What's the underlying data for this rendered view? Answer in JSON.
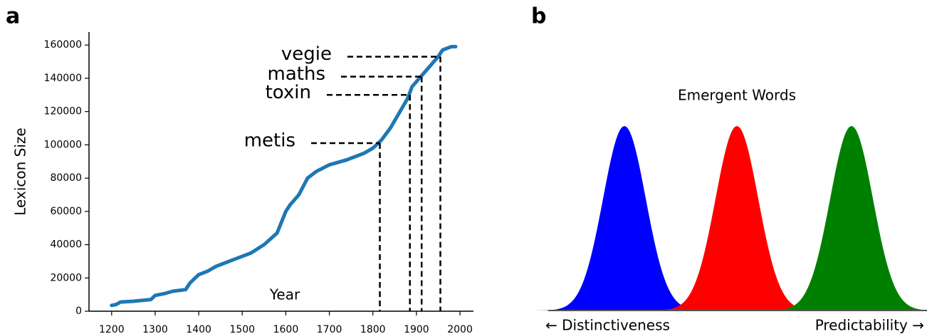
{
  "chart_data": [
    {
      "type": "line",
      "panel_label": "a",
      "xlabel": "Year",
      "ylabel": "Lexicon Size",
      "x": [
        1200,
        1210,
        1220,
        1250,
        1290,
        1300,
        1320,
        1340,
        1370,
        1380,
        1400,
        1420,
        1440,
        1460,
        1480,
        1500,
        1520,
        1550,
        1580,
        1600,
        1610,
        1630,
        1650,
        1670,
        1700,
        1740,
        1780,
        1800,
        1820,
        1840,
        1860,
        1880,
        1890,
        1910,
        1930,
        1950,
        1960,
        1980,
        1990
      ],
      "series": [
        {
          "color": "#1f77b4",
          "values": [
            3500,
            4000,
            5500,
            6000,
            7000,
            9500,
            10500,
            12000,
            13000,
            17000,
            22000,
            24000,
            27000,
            29000,
            31000,
            33000,
            35000,
            40000,
            47000,
            60000,
            64000,
            70000,
            80000,
            84000,
            88000,
            91000,
            95000,
            98000,
            103000,
            110000,
            119000,
            128000,
            135000,
            141000,
            147000,
            153000,
            157000,
            159000,
            159000
          ]
        }
      ],
      "xlim": [
        1148,
        2031
      ],
      "ylim": [
        0,
        167800
      ],
      "xticks": [
        1200,
        1300,
        1400,
        1500,
        1600,
        1700,
        1800,
        1900,
        2000
      ],
      "yticks": [
        0,
        20000,
        40000,
        60000,
        80000,
        100000,
        120000,
        140000,
        160000
      ],
      "annotations": [
        {
          "text": "metis",
          "x": 1816,
          "y": 101000
        },
        {
          "text": "toxin",
          "x": 1885,
          "y": 130000
        },
        {
          "text": "maths",
          "x": 1912,
          "y": 141000
        },
        {
          "text": "vegie",
          "x": 1955,
          "y": 153000
        }
      ]
    },
    {
      "type": "density",
      "panel_label": "b",
      "title": "Emergent Words",
      "xlabel_left": "← Distinctiveness",
      "xlabel_right": "Predictability →",
      "colors": [
        "#0000ff",
        "#ff0000",
        "#008000"
      ]
    }
  ]
}
